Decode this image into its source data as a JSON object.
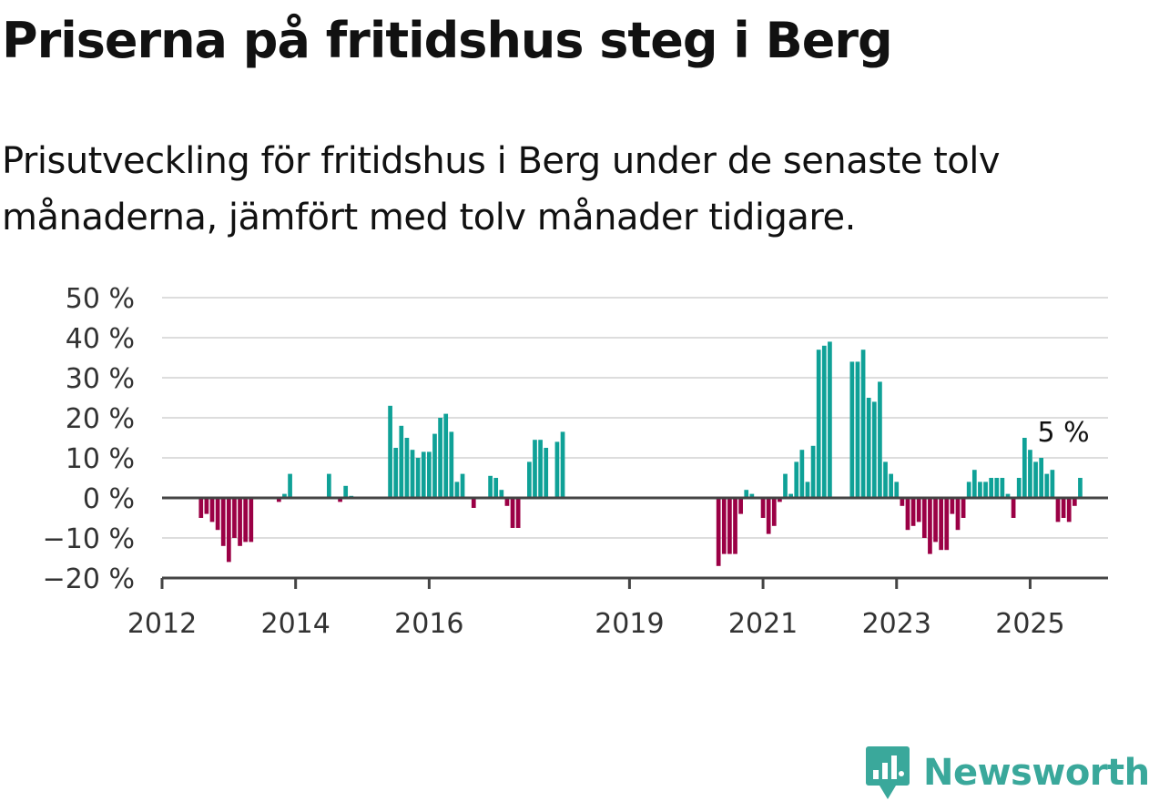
{
  "title": "Priserna på fritidshus steg i Berg",
  "subtitle": "Prisutveckling för fritidshus i Berg under de senaste tolv månaderna, jämfört med tolv månader tidigare.",
  "brand": {
    "name": "Newsworthy",
    "color": "#3aa89b"
  },
  "colors": {
    "positive": "#0fa197",
    "negative": "#9b0045",
    "grid": "#dddddd",
    "axis": "#444444"
  },
  "chart_data": {
    "type": "bar",
    "ylabel": "",
    "xlabel": "",
    "ylim": [
      -20,
      50
    ],
    "yticks": [
      -20,
      -10,
      0,
      10,
      20,
      30,
      40,
      50
    ],
    "ytick_labels": [
      "−20 %",
      "−10 %",
      "0 %",
      "10 %",
      "20 %",
      "30 %",
      "40 %",
      "50 %"
    ],
    "xticks": [
      {
        "year": 2012,
        "label": "2012"
      },
      {
        "year": 2014,
        "label": "2014"
      },
      {
        "year": 2016,
        "label": "2016"
      },
      {
        "year": 2019,
        "label": "2019"
      },
      {
        "year": 2021,
        "label": "2021"
      },
      {
        "year": 2023,
        "label": "2023"
      },
      {
        "year": 2025,
        "label": "2025"
      }
    ],
    "xlim": [
      "2012-01",
      "2026-03"
    ],
    "grid": true,
    "legend": "none",
    "annotation": {
      "date": "2025-07",
      "label": "5 %"
    },
    "series": [
      {
        "date": "2012-08",
        "value": -5
      },
      {
        "date": "2012-09",
        "value": -4
      },
      {
        "date": "2012-10",
        "value": -6
      },
      {
        "date": "2012-11",
        "value": -8
      },
      {
        "date": "2012-12",
        "value": -12
      },
      {
        "date": "2013-01",
        "value": -16
      },
      {
        "date": "2013-02",
        "value": -10
      },
      {
        "date": "2013-03",
        "value": -12
      },
      {
        "date": "2013-04",
        "value": -11
      },
      {
        "date": "2013-05",
        "value": -11
      },
      {
        "date": "2013-10",
        "value": -1
      },
      {
        "date": "2013-11",
        "value": 1
      },
      {
        "date": "2013-12",
        "value": 6
      },
      {
        "date": "2014-07",
        "value": 6
      },
      {
        "date": "2014-09",
        "value": -1
      },
      {
        "date": "2014-10",
        "value": 3
      },
      {
        "date": "2014-11",
        "value": 0.5
      },
      {
        "date": "2015-06",
        "value": 23
      },
      {
        "date": "2015-07",
        "value": 12.5
      },
      {
        "date": "2015-08",
        "value": 18
      },
      {
        "date": "2015-09",
        "value": 15
      },
      {
        "date": "2015-10",
        "value": 12
      },
      {
        "date": "2015-11",
        "value": 10
      },
      {
        "date": "2015-12",
        "value": 11.5
      },
      {
        "date": "2016-01",
        "value": 11.5
      },
      {
        "date": "2016-02",
        "value": 16
      },
      {
        "date": "2016-03",
        "value": 20
      },
      {
        "date": "2016-04",
        "value": 21
      },
      {
        "date": "2016-05",
        "value": 16.5
      },
      {
        "date": "2016-06",
        "value": 4
      },
      {
        "date": "2016-07",
        "value": 6
      },
      {
        "date": "2016-09",
        "value": -2.5
      },
      {
        "date": "2016-12",
        "value": 5.5
      },
      {
        "date": "2017-01",
        "value": 5
      },
      {
        "date": "2017-02",
        "value": 2
      },
      {
        "date": "2017-03",
        "value": -2
      },
      {
        "date": "2017-04",
        "value": -7.5
      },
      {
        "date": "2017-05",
        "value": -7.5
      },
      {
        "date": "2017-07",
        "value": 9
      },
      {
        "date": "2017-08",
        "value": 14.5
      },
      {
        "date": "2017-09",
        "value": 14.5
      },
      {
        "date": "2017-10",
        "value": 12.5
      },
      {
        "date": "2017-12",
        "value": 14
      },
      {
        "date": "2018-01",
        "value": 16.5
      },
      {
        "date": "2020-05",
        "value": -17
      },
      {
        "date": "2020-06",
        "value": -14
      },
      {
        "date": "2020-07",
        "value": -14
      },
      {
        "date": "2020-08",
        "value": -14
      },
      {
        "date": "2020-09",
        "value": -4
      },
      {
        "date": "2020-10",
        "value": 2
      },
      {
        "date": "2020-11",
        "value": 1
      },
      {
        "date": "2021-01",
        "value": -5
      },
      {
        "date": "2021-02",
        "value": -9
      },
      {
        "date": "2021-03",
        "value": -7
      },
      {
        "date": "2021-04",
        "value": -1
      },
      {
        "date": "2021-05",
        "value": 6
      },
      {
        "date": "2021-06",
        "value": 1
      },
      {
        "date": "2021-07",
        "value": 9
      },
      {
        "date": "2021-08",
        "value": 12
      },
      {
        "date": "2021-09",
        "value": 4
      },
      {
        "date": "2021-10",
        "value": 13
      },
      {
        "date": "2021-11",
        "value": 37
      },
      {
        "date": "2021-12",
        "value": 38
      },
      {
        "date": "2022-01",
        "value": 39
      },
      {
        "date": "2022-05",
        "value": 34
      },
      {
        "date": "2022-06",
        "value": 34
      },
      {
        "date": "2022-07",
        "value": 37
      },
      {
        "date": "2022-08",
        "value": 25
      },
      {
        "date": "2022-09",
        "value": 24
      },
      {
        "date": "2022-10",
        "value": 29
      },
      {
        "date": "2022-11",
        "value": 9
      },
      {
        "date": "2022-12",
        "value": 6
      },
      {
        "date": "2023-01",
        "value": 4
      },
      {
        "date": "2023-02",
        "value": -2
      },
      {
        "date": "2023-03",
        "value": -8
      },
      {
        "date": "2023-04",
        "value": -7
      },
      {
        "date": "2023-05",
        "value": -6
      },
      {
        "date": "2023-06",
        "value": -10
      },
      {
        "date": "2023-07",
        "value": -14
      },
      {
        "date": "2023-08",
        "value": -11
      },
      {
        "date": "2023-09",
        "value": -13
      },
      {
        "date": "2023-10",
        "value": -13
      },
      {
        "date": "2023-11",
        "value": -4
      },
      {
        "date": "2023-12",
        "value": -8
      },
      {
        "date": "2024-01",
        "value": -5
      },
      {
        "date": "2024-02",
        "value": 4
      },
      {
        "date": "2024-03",
        "value": 7
      },
      {
        "date": "2024-04",
        "value": 4
      },
      {
        "date": "2024-05",
        "value": 4
      },
      {
        "date": "2024-06",
        "value": 5
      },
      {
        "date": "2024-07",
        "value": 5
      },
      {
        "date": "2024-08",
        "value": 5
      },
      {
        "date": "2024-09",
        "value": 1
      },
      {
        "date": "2024-10",
        "value": -5
      },
      {
        "date": "2024-11",
        "value": 5
      },
      {
        "date": "2024-12",
        "value": 15
      },
      {
        "date": "2025-01",
        "value": 12
      },
      {
        "date": "2025-02",
        "value": 9
      },
      {
        "date": "2025-03",
        "value": 10
      },
      {
        "date": "2025-04",
        "value": 6
      },
      {
        "date": "2025-05",
        "value": 7
      },
      {
        "date": "2025-06",
        "value": -6
      },
      {
        "date": "2025-07",
        "value": -5
      },
      {
        "date": "2025-08",
        "value": -6
      },
      {
        "date": "2025-09",
        "value": -2
      },
      {
        "date": "2025-10",
        "value": 5
      }
    ]
  }
}
